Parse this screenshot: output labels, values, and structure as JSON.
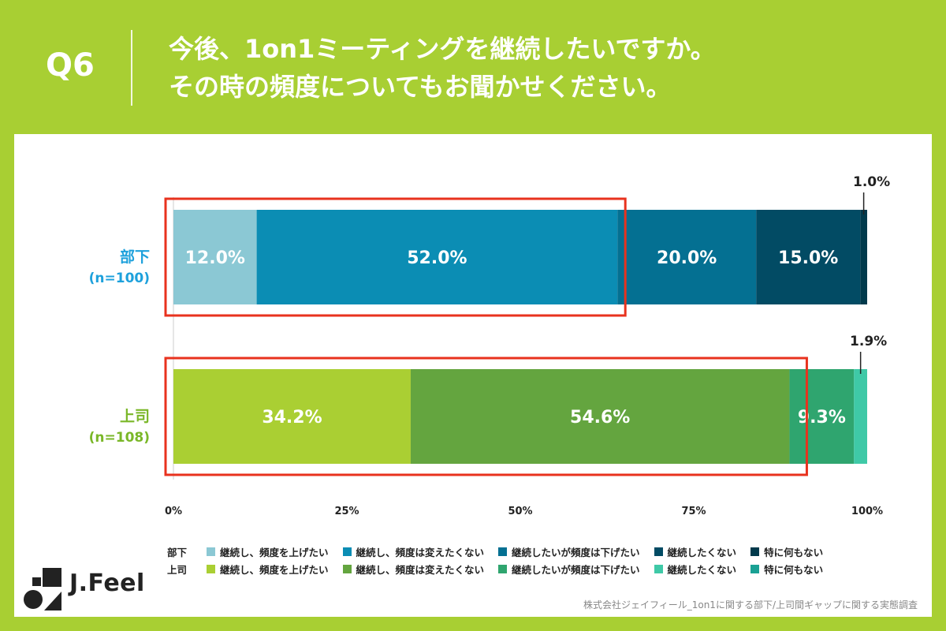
{
  "header": {
    "question_label": "Q6",
    "title_line1": "今後、1on1ミーティングを継続したいですか。",
    "title_line2": "その時の頻度についてもお聞かせください。"
  },
  "chart_data": {
    "type": "bar",
    "orientation": "horizontal",
    "stacked": true,
    "xlim": [
      0,
      100
    ],
    "x_ticks": [
      "0%",
      "25%",
      "50%",
      "75%",
      "100%"
    ],
    "groups": [
      {
        "name": "部下",
        "n_label": "(n=100)",
        "color": "#1ea1dc",
        "values": [
          12.0,
          52.0,
          20.0,
          15.0,
          1.0
        ],
        "labels": [
          "12.0%",
          "52.0%",
          "20.0%",
          "15.0%",
          "1.0%"
        ],
        "colors": [
          "#8bc8d4",
          "#0b8db4",
          "#047092",
          "#024b64",
          "#013a4c"
        ],
        "legend": [
          "継続し、頻度を上げたい",
          "継続し、頻度は変えたくない",
          "継続したいが頻度は下げたい",
          "継続したくない",
          "特に何もない"
        ],
        "highlight_upto": 2
      },
      {
        "name": "上司",
        "n_label": "(n=108)",
        "color": "#7ab728",
        "values": [
          34.2,
          54.6,
          9.3,
          1.9,
          0
        ],
        "labels": [
          "34.2%",
          "54.6%",
          "9.3%",
          "1.9%",
          ""
        ],
        "colors": [
          "#aacf33",
          "#64a53f",
          "#2fa56f",
          "#3fc9a7",
          "#1aa194"
        ],
        "legend": [
          "継続し、頻度を上げたい",
          "継続し、頻度は変えたくない",
          "継続したいが頻度は下げたい",
          "継続したくない",
          "特に何もない"
        ],
        "highlight_upto": 2
      }
    ],
    "highlight_color": "#e8321e"
  },
  "logo": {
    "text": "J.Feel"
  },
  "source": "株式会社ジェイフィール_1on1に関する部下/上司間ギャップに関する実態調査"
}
